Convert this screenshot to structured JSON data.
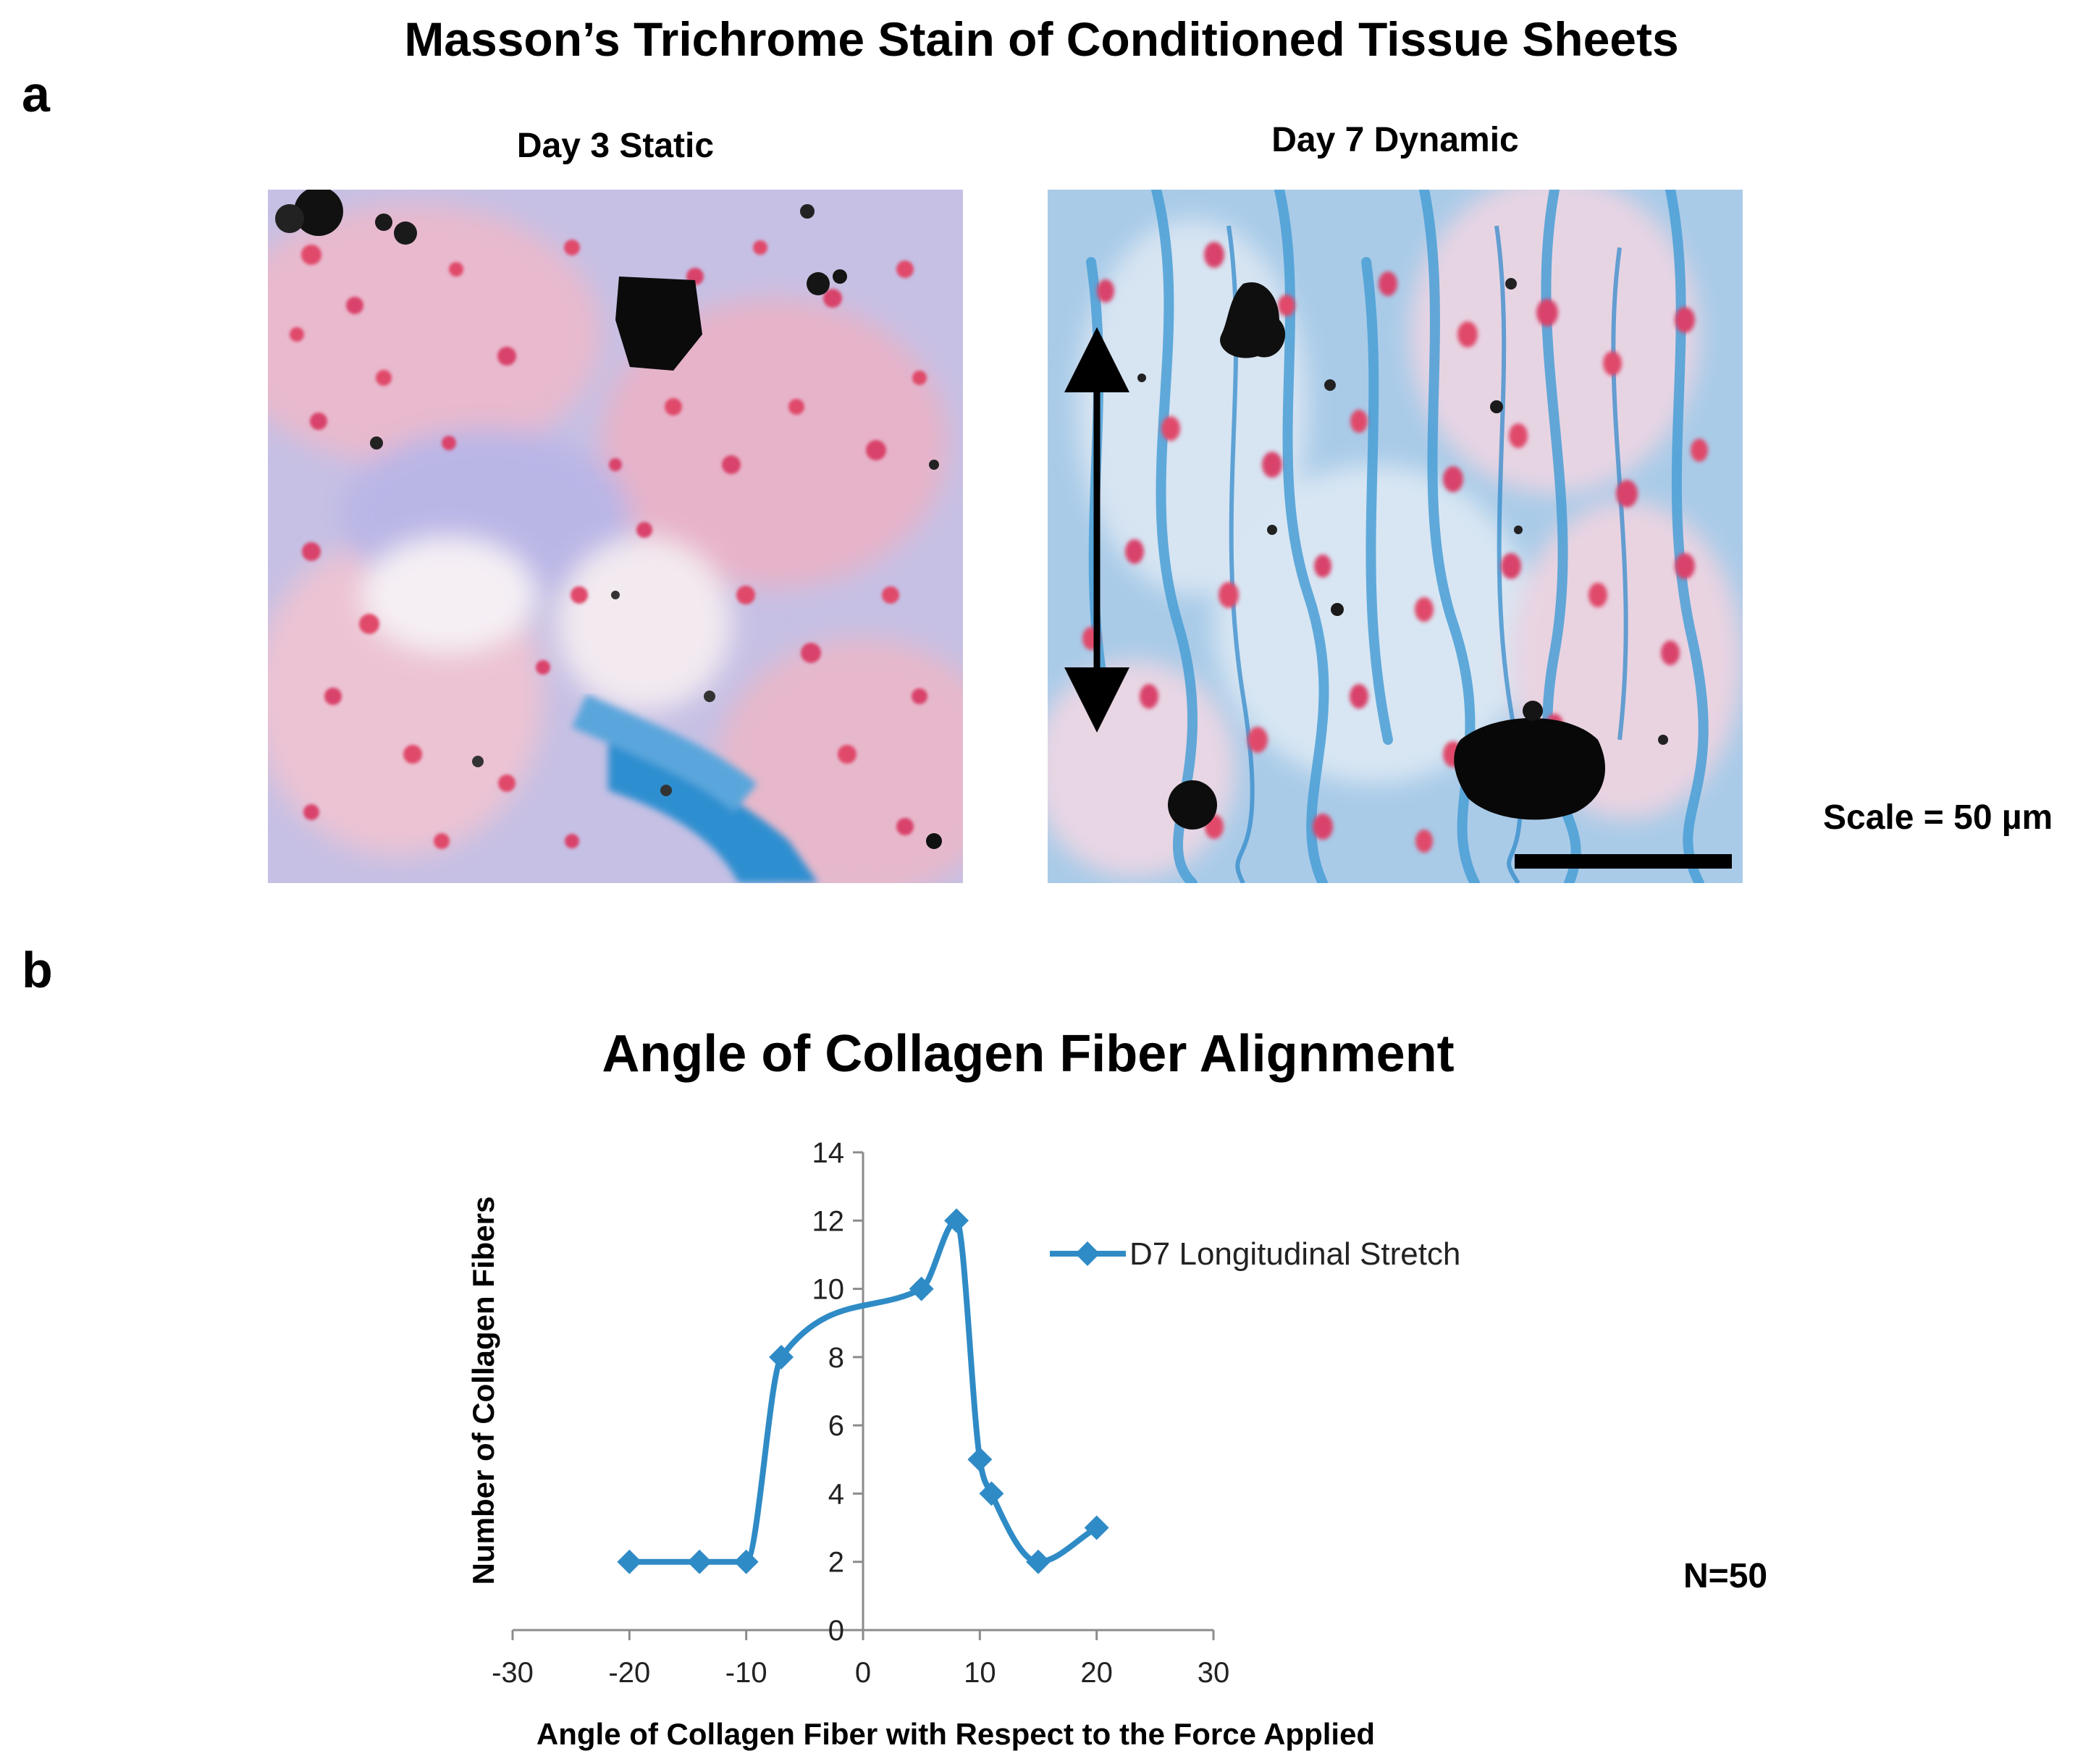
{
  "figure_title": "Masson’s Trichrome Stain of Conditioned Tissue Sheets",
  "panel_a_label": "a",
  "panel_b_label": "b",
  "images": [
    {
      "label": "Day 3 Static"
    },
    {
      "label": "Day 7 Dynamic"
    }
  ],
  "scale_label": "Scale = 50 µm",
  "sample_size": "N=50",
  "colors": {
    "series": "#2f8bc6",
    "collagen_blue": "#4fa6d8",
    "nuclei_red": "#d9506e",
    "background_lilac": "#c9c3e6"
  },
  "chart_data": {
    "type": "line",
    "title": "Angle of Collagen Fiber Alignment",
    "xlabel": "Angle of Collagen Fiber with Respect to the Force Applied",
    "ylabel": "Number of Collagen Fibers",
    "xlim": [
      -30,
      30
    ],
    "ylim": [
      0,
      14
    ],
    "xticks": [
      -30,
      -20,
      -10,
      0,
      10,
      20,
      30
    ],
    "yticks": [
      0,
      2,
      4,
      6,
      8,
      10,
      12,
      14
    ],
    "grid": false,
    "legend_position": "right",
    "series": [
      {
        "name": "D7 Longitudinal Stretch",
        "x": [
          -20,
          -14,
          -10,
          -7,
          5,
          8,
          10,
          11,
          15,
          20
        ],
        "y": [
          2,
          2,
          2,
          8,
          10,
          12,
          5,
          4,
          2,
          3
        ]
      }
    ]
  }
}
